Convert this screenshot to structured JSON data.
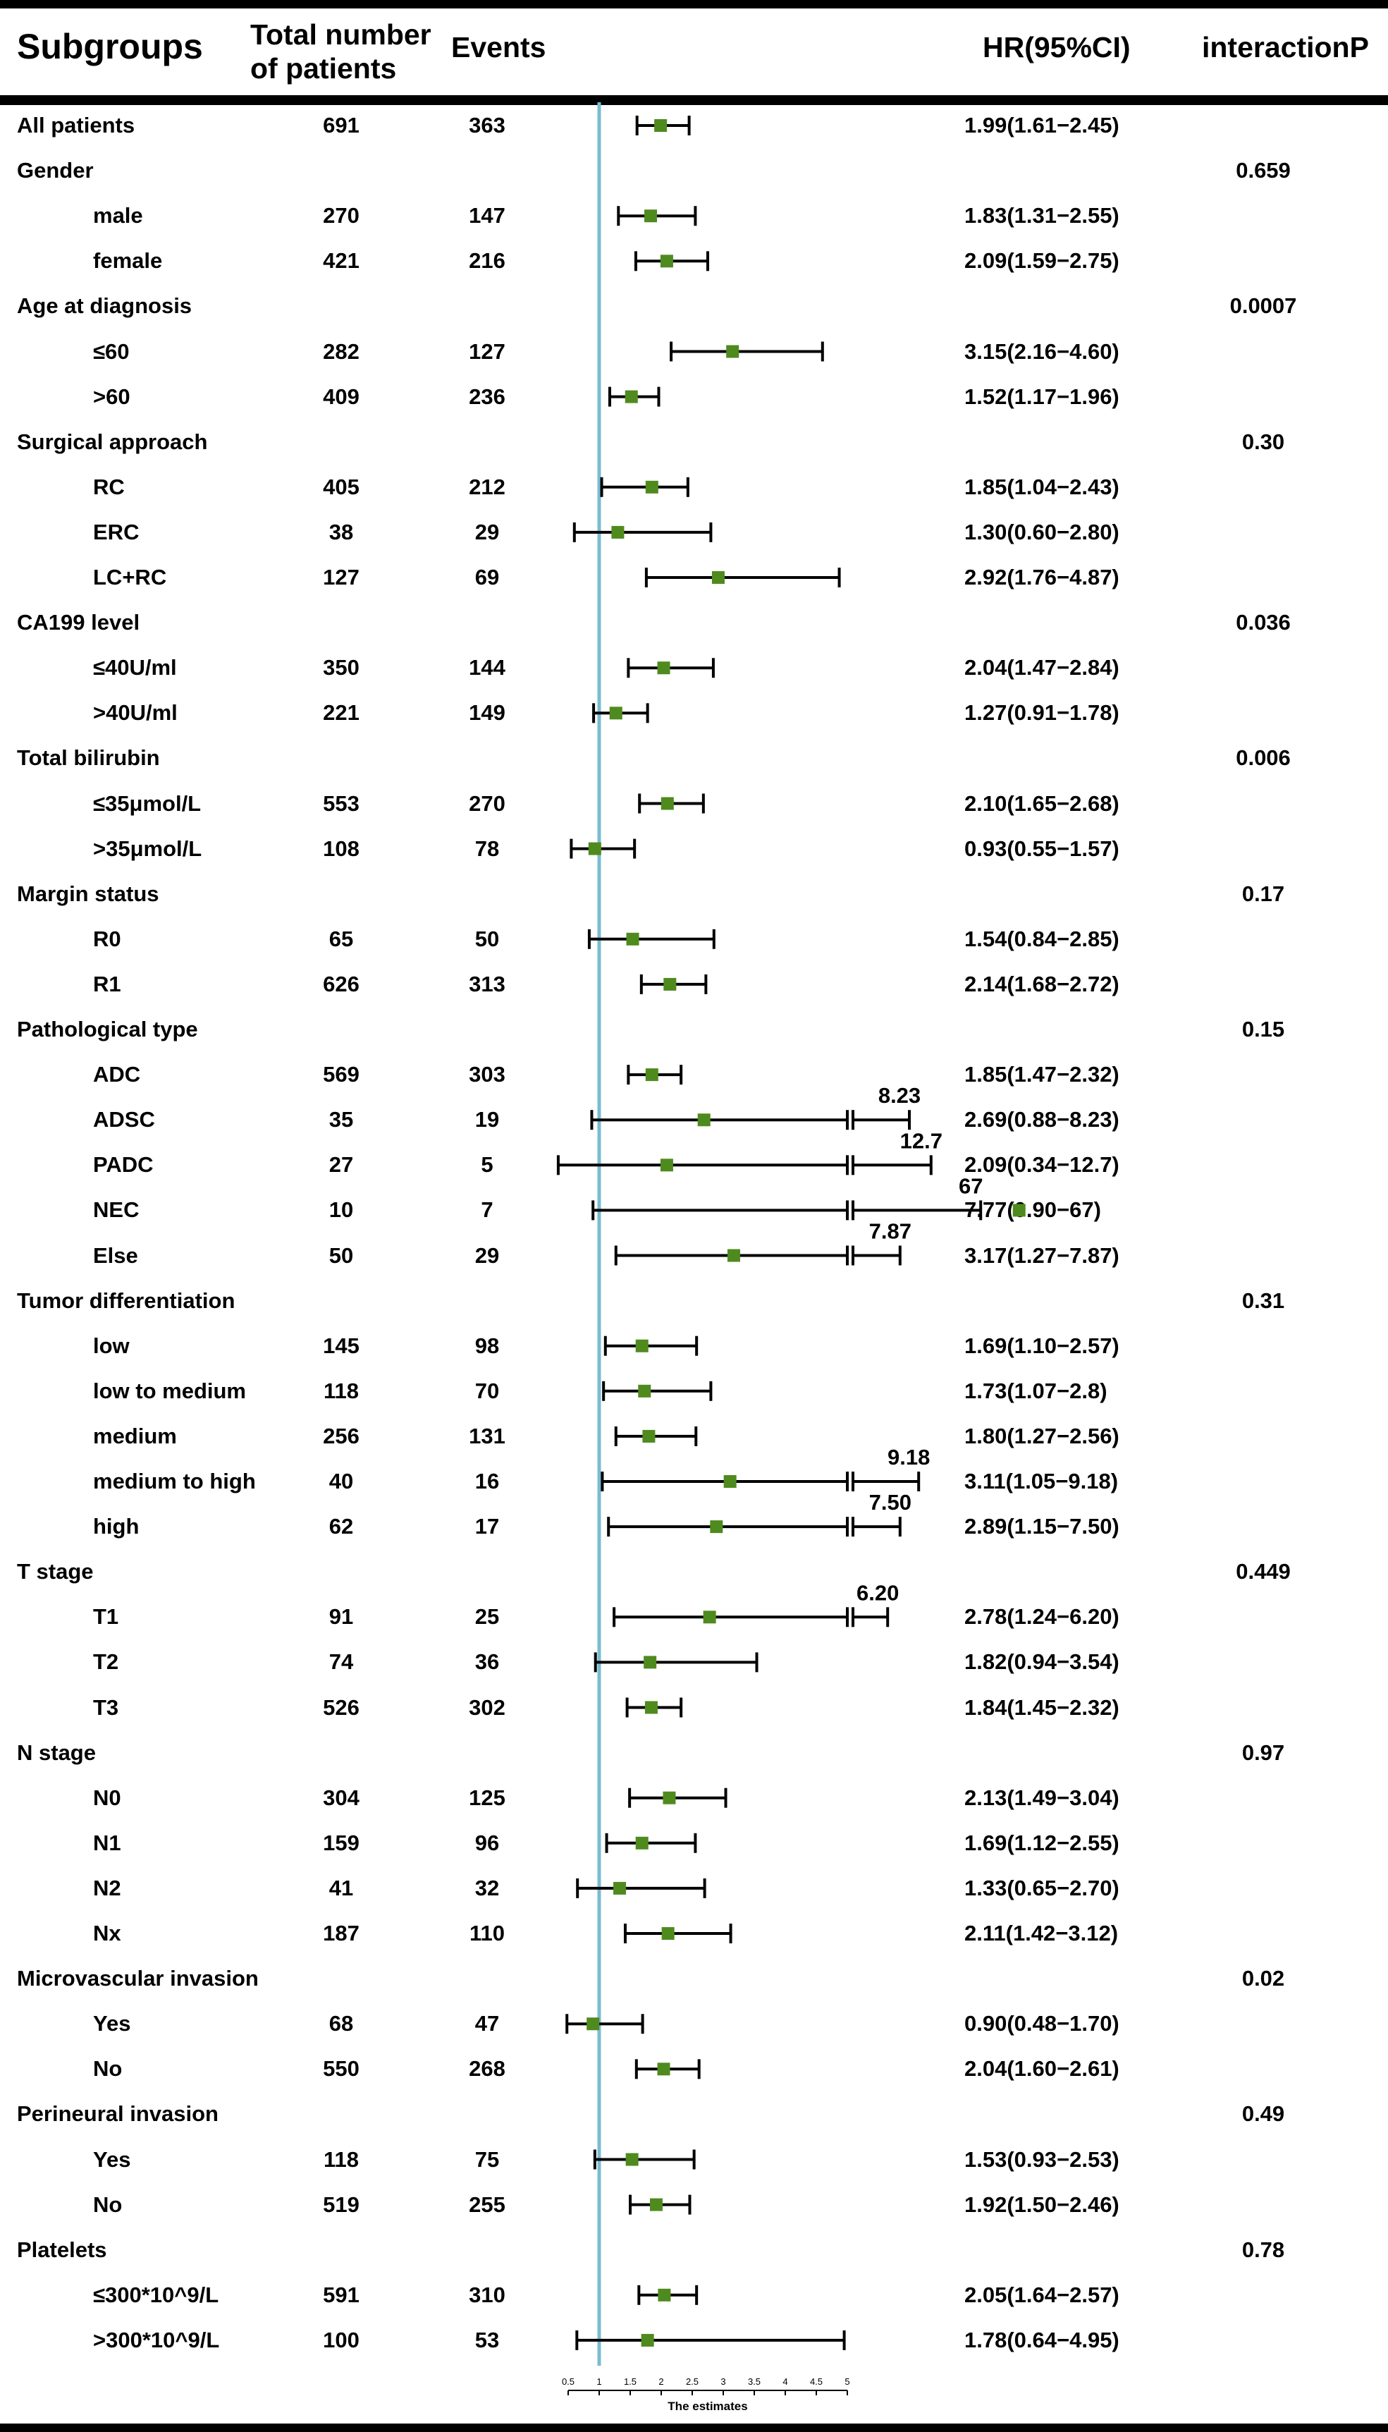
{
  "header": {
    "subgroups": "Subgroups",
    "total_line1": "Total number",
    "total_line2": "of patients",
    "events": "Events",
    "hr": "HR(95%CI)",
    "interaction": "interactionP"
  },
  "chart_data": {
    "type": "forest",
    "title": "",
    "xlabel": "The estimates",
    "reference_line": 1,
    "xlim": [
      0.5,
      5
    ],
    "xticks": [
      "0.5",
      "1",
      "1.5",
      "2",
      "2.5",
      "3",
      "3.5",
      "4",
      "4.5",
      "5"
    ],
    "rows": [
      {
        "label": "All patients",
        "kind": "group",
        "n": "691",
        "events": "363",
        "hr": 1.99,
        "lo": 1.61,
        "hi": 2.45,
        "hr_text": "1.99(1.61−2.45)",
        "p": ""
      },
      {
        "label": "Gender",
        "kind": "group",
        "n": "",
        "events": "",
        "hr_text": "",
        "p": "0.659"
      },
      {
        "label": "male",
        "kind": "sub",
        "n": "270",
        "events": "147",
        "hr": 1.83,
        "lo": 1.31,
        "hi": 2.55,
        "hr_text": "1.83(1.31−2.55)",
        "p": ""
      },
      {
        "label": "female",
        "kind": "sub",
        "n": "421",
        "events": "216",
        "hr": 2.09,
        "lo": 1.59,
        "hi": 2.75,
        "hr_text": "2.09(1.59−2.75)",
        "p": ""
      },
      {
        "label": "Age at diagnosis",
        "kind": "group",
        "n": "",
        "events": "",
        "hr_text": "",
        "p": "0.0007"
      },
      {
        "label": "≤60",
        "kind": "sub",
        "n": "282",
        "events": "127",
        "hr": 3.15,
        "lo": 2.16,
        "hi": 4.6,
        "hr_text": "3.15(2.16−4.60)",
        "p": ""
      },
      {
        "label": ">60",
        "kind": "sub",
        "n": "409",
        "events": "236",
        "hr": 1.52,
        "lo": 1.17,
        "hi": 1.96,
        "hr_text": "1.52(1.17−1.96)",
        "p": ""
      },
      {
        "label": "Surgical approach",
        "kind": "group",
        "n": "",
        "events": "",
        "hr_text": "",
        "p": "0.30"
      },
      {
        "label": "RC",
        "kind": "sub",
        "n": "405",
        "events": "212",
        "hr": 1.85,
        "lo": 1.04,
        "hi": 2.43,
        "hr_text": "1.85(1.04−2.43)",
        "p": ""
      },
      {
        "label": "ERC",
        "kind": "sub",
        "n": "38",
        "events": "29",
        "hr": 1.3,
        "lo": 0.6,
        "hi": 2.8,
        "hr_text": "1.30(0.60−2.80)",
        "p": ""
      },
      {
        "label": "LC+RC",
        "kind": "sub",
        "n": "127",
        "events": "69",
        "hr": 2.92,
        "lo": 1.76,
        "hi": 4.87,
        "hr_text": "2.92(1.76−4.87)",
        "p": ""
      },
      {
        "label": "CA199 level",
        "kind": "group",
        "n": "",
        "events": "",
        "hr_text": "",
        "p": "0.036"
      },
      {
        "label": "≤40U/ml",
        "kind": "sub",
        "n": "350",
        "events": "144",
        "hr": 2.04,
        "lo": 1.47,
        "hi": 2.84,
        "hr_text": "2.04(1.47−2.84)",
        "p": ""
      },
      {
        "label": ">40U/ml",
        "kind": "sub",
        "n": "221",
        "events": "149",
        "hr": 1.27,
        "lo": 0.91,
        "hi": 1.78,
        "hr_text": "1.27(0.91−1.78)",
        "p": ""
      },
      {
        "label": "Total bilirubin",
        "kind": "group",
        "n": "",
        "events": "",
        "hr_text": "",
        "p": "0.006"
      },
      {
        "label": "≤35μmol/L",
        "kind": "sub",
        "n": "553",
        "events": "270",
        "hr": 2.1,
        "lo": 1.65,
        "hi": 2.68,
        "hr_text": "2.10(1.65−2.68)",
        "p": ""
      },
      {
        "label": ">35μmol/L",
        "kind": "sub",
        "n": "108",
        "events": "78",
        "hr": 0.93,
        "lo": 0.55,
        "hi": 1.57,
        "hr_text": "0.93(0.55−1.57)",
        "p": ""
      },
      {
        "label": "Margin status",
        "kind": "group",
        "n": "",
        "events": "",
        "hr_text": "",
        "p": "0.17"
      },
      {
        "label": "R0",
        "kind": "sub",
        "n": "65",
        "events": "50",
        "hr": 1.54,
        "lo": 0.84,
        "hi": 2.85,
        "hr_text": "1.54(0.84−2.85)",
        "p": ""
      },
      {
        "label": "R1",
        "kind": "sub",
        "n": "626",
        "events": "313",
        "hr": 2.14,
        "lo": 1.68,
        "hi": 2.72,
        "hr_text": "2.14(1.68−2.72)",
        "p": ""
      },
      {
        "label": "Pathological type",
        "kind": "group",
        "n": "",
        "events": "",
        "hr_text": "",
        "p": "0.15"
      },
      {
        "label": "ADC",
        "kind": "sub",
        "n": "569",
        "events": "303",
        "hr": 1.85,
        "lo": 1.47,
        "hi": 2.32,
        "hr_text": "1.85(1.47−2.32)",
        "p": ""
      },
      {
        "label": "ADSC",
        "kind": "sub",
        "n": "35",
        "events": "19",
        "hr": 2.69,
        "lo": 0.88,
        "hi": 8.23,
        "hr_text": "2.69(0.88−8.23)",
        "p": "",
        "break_value": "8.23",
        "break_end": 6.0
      },
      {
        "label": "PADC",
        "kind": "sub",
        "n": "27",
        "events": "5",
        "hr": 2.09,
        "lo": 0.34,
        "hi": 12.7,
        "hr_text": "2.09(0.34−12.7)",
        "p": "",
        "break_value": "12.7",
        "break_end": 6.35
      },
      {
        "label": "NEC",
        "kind": "sub",
        "n": "10",
        "events": "7",
        "hr": 7.77,
        "lo": 0.9,
        "hi": 67,
        "hr_text": "7.77(0.90−67)",
        "p": "",
        "break_value": "67",
        "break_end": 7.15
      },
      {
        "label": "Else",
        "kind": "sub",
        "n": "50",
        "events": "29",
        "hr": 3.17,
        "lo": 1.27,
        "hi": 7.87,
        "hr_text": "3.17(1.27−7.87)",
        "p": "",
        "break_value": "7.87",
        "break_end": 5.85
      },
      {
        "label": "Tumor differentiation",
        "kind": "group",
        "n": "",
        "events": "",
        "hr_text": "",
        "p": "0.31"
      },
      {
        "label": "low",
        "kind": "sub",
        "n": "145",
        "events": "98",
        "hr": 1.69,
        "lo": 1.1,
        "hi": 2.57,
        "hr_text": "1.69(1.10−2.57)",
        "p": ""
      },
      {
        "label": "low to medium",
        "kind": "sub",
        "n": "118",
        "events": "70",
        "hr": 1.73,
        "lo": 1.07,
        "hi": 2.8,
        "hr_text": "1.73(1.07−2.8)",
        "p": ""
      },
      {
        "label": "medium",
        "kind": "sub",
        "n": "256",
        "events": "131",
        "hr": 1.8,
        "lo": 1.27,
        "hi": 2.56,
        "hr_text": "1.80(1.27−2.56)",
        "p": ""
      },
      {
        "label": "medium to high",
        "kind": "sub",
        "n": "40",
        "events": "16",
        "hr": 3.11,
        "lo": 1.05,
        "hi": 9.18,
        "hr_text": "3.11(1.05−9.18)",
        "p": "",
        "break_value": "9.18",
        "break_end": 6.15
      },
      {
        "label": "high",
        "kind": "sub",
        "n": "62",
        "events": "17",
        "hr": 2.89,
        "lo": 1.15,
        "hi": 7.5,
        "hr_text": "2.89(1.15−7.50)",
        "p": "",
        "break_value": "7.50",
        "break_end": 5.85
      },
      {
        "label": "T stage",
        "kind": "group",
        "n": "",
        "events": "",
        "hr_text": "",
        "p": "0.449"
      },
      {
        "label": "T1",
        "kind": "sub",
        "n": "91",
        "events": "25",
        "hr": 2.78,
        "lo": 1.24,
        "hi": 6.2,
        "hr_text": "2.78(1.24−6.20)",
        "p": "",
        "break_value": "6.20",
        "break_end": 5.65
      },
      {
        "label": "T2",
        "kind": "sub",
        "n": "74",
        "events": "36",
        "hr": 1.82,
        "lo": 0.94,
        "hi": 3.54,
        "hr_text": "1.82(0.94−3.54)",
        "p": ""
      },
      {
        "label": "T3",
        "kind": "sub",
        "n": "526",
        "events": "302",
        "hr": 1.84,
        "lo": 1.45,
        "hi": 2.32,
        "hr_text": "1.84(1.45−2.32)",
        "p": ""
      },
      {
        "label": "N stage",
        "kind": "group",
        "n": "",
        "events": "",
        "hr_text": "",
        "p": "0.97"
      },
      {
        "label": "N0",
        "kind": "sub",
        "n": "304",
        "events": "125",
        "hr": 2.13,
        "lo": 1.49,
        "hi": 3.04,
        "hr_text": "2.13(1.49−3.04)",
        "p": ""
      },
      {
        "label": "N1",
        "kind": "sub",
        "n": "159",
        "events": "96",
        "hr": 1.69,
        "lo": 1.12,
        "hi": 2.55,
        "hr_text": "1.69(1.12−2.55)",
        "p": ""
      },
      {
        "label": "N2",
        "kind": "sub",
        "n": "41",
        "events": "32",
        "hr": 1.33,
        "lo": 0.65,
        "hi": 2.7,
        "hr_text": "1.33(0.65−2.70)",
        "p": ""
      },
      {
        "label": "Nx",
        "kind": "sub",
        "n": "187",
        "events": "110",
        "hr": 2.11,
        "lo": 1.42,
        "hi": 3.12,
        "hr_text": "2.11(1.42−3.12)",
        "p": ""
      },
      {
        "label": "Microvascular invasion",
        "kind": "group",
        "n": "",
        "events": "",
        "hr_text": "",
        "p": "0.02"
      },
      {
        "label": "Yes",
        "kind": "sub",
        "n": "68",
        "events": "47",
        "hr": 0.9,
        "lo": 0.48,
        "hi": 1.7,
        "hr_text": "0.90(0.48−1.70)",
        "p": ""
      },
      {
        "label": "No",
        "kind": "sub",
        "n": "550",
        "events": "268",
        "hr": 2.04,
        "lo": 1.6,
        "hi": 2.61,
        "hr_text": "2.04(1.60−2.61)",
        "p": ""
      },
      {
        "label": "Perineural invasion",
        "kind": "group",
        "n": "",
        "events": "",
        "hr_text": "",
        "p": "0.49"
      },
      {
        "label": "Yes",
        "kind": "sub",
        "n": "118",
        "events": "75",
        "hr": 1.53,
        "lo": 0.93,
        "hi": 2.53,
        "hr_text": "1.53(0.93−2.53)",
        "p": ""
      },
      {
        "label": "No",
        "kind": "sub",
        "n": "519",
        "events": "255",
        "hr": 1.92,
        "lo": 1.5,
        "hi": 2.46,
        "hr_text": "1.92(1.50−2.46)",
        "p": ""
      },
      {
        "label": "Platelets",
        "kind": "group",
        "n": "",
        "events": "",
        "hr_text": "",
        "p": "0.78"
      },
      {
        "label": "≤300*10^9/L",
        "kind": "sub",
        "n": "591",
        "events": "310",
        "hr": 2.05,
        "lo": 1.64,
        "hi": 2.57,
        "hr_text": "2.05(1.64−2.57)",
        "p": ""
      },
      {
        "label": ">300*10^9/L",
        "kind": "sub",
        "n": "100",
        "events": "53",
        "hr": 1.78,
        "lo": 0.64,
        "hi": 4.95,
        "hr_text": "1.78(0.64−4.95)",
        "p": ""
      }
    ]
  },
  "colors": {
    "reference_line": "#79bcd0",
    "point": "#4f8a1e",
    "text": "#000000"
  }
}
